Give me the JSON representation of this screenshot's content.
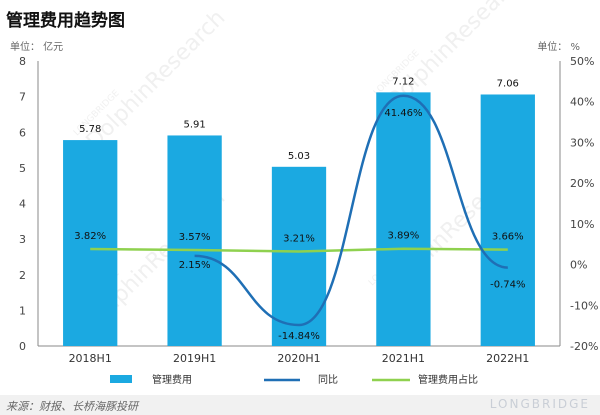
{
  "title": "管理费用趋势图",
  "unit_left": "单位： 亿元",
  "unit_right": "单位： %",
  "source": "来源：财报、长桥海豚投研",
  "brand": "LONGBRIDGE",
  "watermark": "DolphinResearch",
  "watermark_small": "LONGBRIDGE",
  "colors": {
    "bar": "#1ba9e1",
    "yoy": "#1f6fb5",
    "ratio": "#8fd14f"
  },
  "chart_data": {
    "type": "bar",
    "categories": [
      "2018H1",
      "2019H1",
      "2020H1",
      "2021H1",
      "2022H1"
    ],
    "series": [
      {
        "name": "管理费用",
        "type": "bar",
        "axis": "left",
        "values": [
          5.78,
          5.91,
          5.03,
          7.12,
          7.06
        ],
        "labels": [
          "5.78",
          "5.91",
          "5.03",
          "7.12",
          "7.06"
        ]
      },
      {
        "name": "同比",
        "type": "line",
        "axis": "right",
        "smooth": true,
        "values": [
          null,
          2.15,
          -14.84,
          41.46,
          -0.74
        ],
        "labels": [
          "",
          "2.15%",
          "-14.84%",
          "41.46%",
          "-0.74%"
        ]
      },
      {
        "name": "管理费用占比",
        "type": "line",
        "axis": "right",
        "values": [
          3.82,
          3.57,
          3.21,
          3.89,
          3.66
        ],
        "labels": [
          "3.82%",
          "3.57%",
          "3.21%",
          "3.89%",
          "3.66%"
        ]
      }
    ],
    "ylim_left": [
      0,
      8
    ],
    "yticks_left": [
      "0",
      "1",
      "2",
      "3",
      "4",
      "5",
      "6",
      "7",
      "8"
    ],
    "ylim_right": [
      -20,
      50
    ],
    "yticks_right": [
      "-20%",
      "-10%",
      "0%",
      "10%",
      "20%",
      "30%",
      "40%",
      "50%"
    ],
    "legend_position": "bottom"
  }
}
